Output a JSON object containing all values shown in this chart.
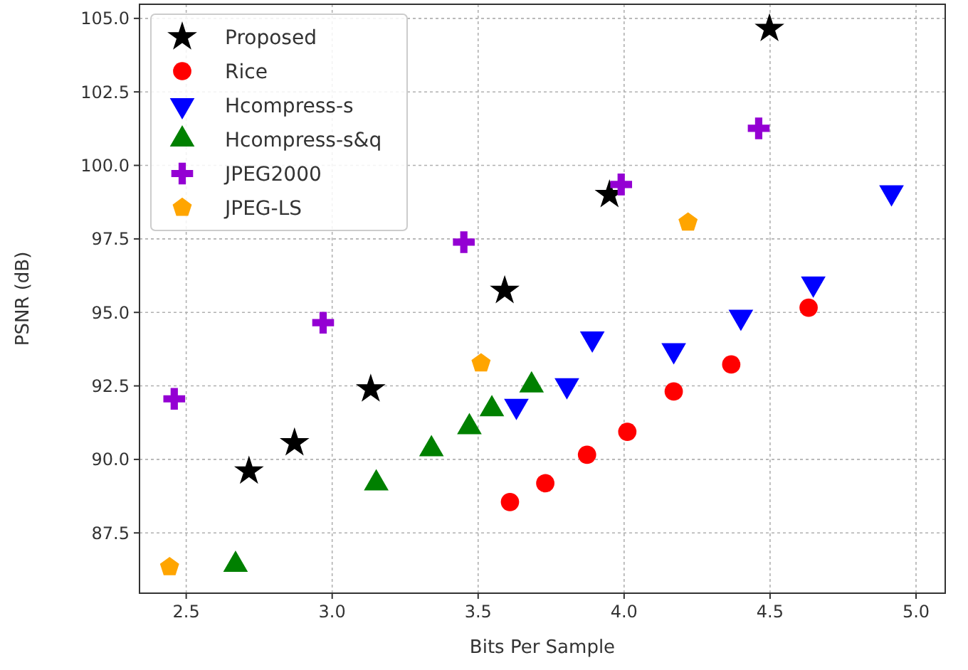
{
  "chart_data": {
    "type": "scatter",
    "xlabel": "Bits Per Sample",
    "ylabel": "PSNR (dB)",
    "xlim": [
      2.34,
      5.1
    ],
    "ylim": [
      85.45,
      105.48
    ],
    "xticks": [
      {
        "value": 2.5,
        "label": "2.5"
      },
      {
        "value": 3,
        "label": "3.0"
      },
      {
        "value": 3.5,
        "label": "3.5"
      },
      {
        "value": 4,
        "label": "4.0"
      },
      {
        "value": 4.5,
        "label": "4.5"
      },
      {
        "value": 5,
        "label": "5.0"
      }
    ],
    "yticks": [
      87.5,
      {
        "value": 90,
        "label": "90.0"
      },
      92.5,
      {
        "value": 95,
        "label": "95.0"
      },
      97.5,
      {
        "value": 100,
        "label": "100.0"
      },
      102.5,
      {
        "value": 105,
        "label": "105.0"
      }
    ],
    "grid": true,
    "legend": "top left",
    "series": [
      {
        "name": "Proposed",
        "color": "#000000",
        "marker": "star",
        "x": [
          2.715,
          2.871,
          3.132,
          3.591,
          3.95,
          4.498
        ],
        "values": [
          89.6,
          90.56,
          92.39,
          95.74,
          99.0,
          104.65
        ]
      },
      {
        "name": "Rice",
        "color": "#ff0000",
        "marker": "circle",
        "x": [
          3.609,
          3.73,
          3.873,
          4.011,
          4.17,
          4.367,
          4.632
        ],
        "values": [
          88.55,
          89.19,
          90.16,
          90.94,
          92.31,
          93.23,
          95.16
        ]
      },
      {
        "name": "Hcompress-s",
        "color": "#0000ff",
        "marker": "triangle-down",
        "x": [
          3.631,
          3.804,
          3.891,
          4.17,
          4.4,
          4.648,
          4.916
        ],
        "values": [
          91.82,
          92.52,
          94.11,
          93.71,
          94.85,
          95.98,
          99.08
        ]
      },
      {
        "name": "Hcompress-s&q",
        "color": "#008000",
        "marker": "triangle",
        "x": [
          2.669,
          3.151,
          3.34,
          3.47,
          3.547,
          3.683
        ],
        "values": [
          86.42,
          89.19,
          90.35,
          91.1,
          91.71,
          92.52
        ]
      },
      {
        "name": "JPEG2000",
        "color": "#9400d3",
        "marker": "cross",
        "x": [
          2.459,
          2.969,
          3.451,
          3.99,
          4.461
        ],
        "values": [
          92.06,
          94.65,
          97.39,
          99.35,
          101.26
        ]
      },
      {
        "name": "JPEG-LS",
        "color": "#ffa500",
        "x": [
          2.443,
          3.51,
          4.219
        ],
        "values": [
          86.34,
          93.27,
          98.06
        ]
      }
    ]
  }
}
